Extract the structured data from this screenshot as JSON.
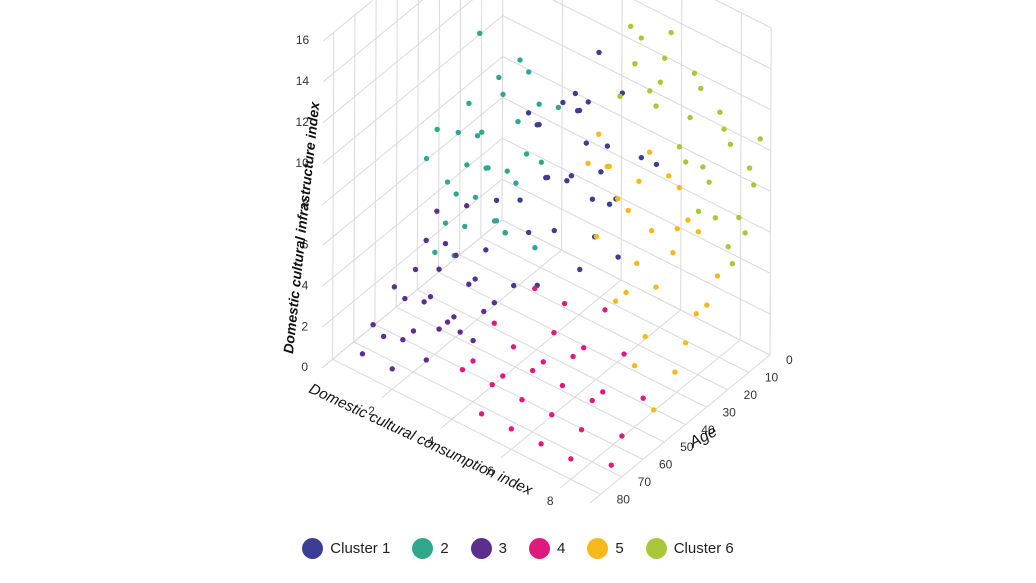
{
  "chart_data": {
    "type": "scatter",
    "dimensions": 3,
    "xlabel": "Domestic cultural consumption index",
    "ylabel": "Age",
    "zlabel": "Domestic cultural infrastructure index",
    "xlim": [
      0,
      9
    ],
    "ylim": [
      0,
      85
    ],
    "zlim": [
      0,
      16
    ],
    "x_ticks": [
      2,
      4,
      6,
      8
    ],
    "y_ticks": [
      0,
      10,
      20,
      30,
      40,
      50,
      60,
      70,
      80
    ],
    "z_ticks": [
      0,
      2,
      4,
      6,
      8,
      10,
      12,
      14,
      16
    ],
    "legend_position": "bottom",
    "grid": true,
    "series": [
      {
        "name": "Cluster 1",
        "legend_label": "Cluster 1",
        "color": "#3c3d94",
        "points": [
          [
            3,
            25,
            9
          ],
          [
            4,
            22,
            11
          ],
          [
            5,
            30,
            12
          ],
          [
            6,
            28,
            13
          ],
          [
            4,
            35,
            8
          ],
          [
            5,
            40,
            9
          ],
          [
            6,
            38,
            10
          ],
          [
            7,
            33,
            11
          ],
          [
            3,
            45,
            7
          ],
          [
            4,
            48,
            8
          ],
          [
            5,
            50,
            10
          ],
          [
            6,
            52,
            11
          ],
          [
            7,
            55,
            9
          ],
          [
            5,
            42,
            13
          ],
          [
            4,
            20,
            10
          ],
          [
            6,
            45,
            12
          ],
          [
            7,
            48,
            10
          ],
          [
            5,
            58,
            8
          ],
          [
            6,
            60,
            9
          ],
          [
            8,
            40,
            12
          ],
          [
            3,
            30,
            10
          ],
          [
            4,
            40,
            11
          ],
          [
            5,
            35,
            12
          ],
          [
            6,
            42,
            9
          ],
          [
            7,
            62,
            8
          ],
          [
            8,
            58,
            9
          ],
          [
            5,
            25,
            14
          ],
          [
            6,
            35,
            11
          ],
          [
            7,
            45,
            10
          ],
          [
            4,
            55,
            7
          ],
          [
            5,
            65,
            6
          ],
          [
            6,
            68,
            7
          ]
        ]
      },
      {
        "name": "2",
        "legend_label": "2",
        "color": "#2fa88e",
        "points": [
          [
            1,
            30,
            9
          ],
          [
            2,
            28,
            10
          ],
          [
            1,
            35,
            8
          ],
          [
            2,
            40,
            9
          ],
          [
            3,
            35,
            10
          ],
          [
            2,
            45,
            8
          ],
          [
            3,
            50,
            9
          ],
          [
            4,
            45,
            10
          ],
          [
            1,
            25,
            12
          ],
          [
            2,
            20,
            11
          ],
          [
            3,
            55,
            8
          ],
          [
            4,
            50,
            9
          ],
          [
            2,
            35,
            7
          ],
          [
            3,
            40,
            8
          ],
          [
            4,
            38,
            9
          ],
          [
            1,
            40,
            6
          ],
          [
            2,
            50,
            7
          ],
          [
            3,
            45,
            6
          ],
          [
            4,
            55,
            7
          ],
          [
            2,
            55,
            6
          ],
          [
            3,
            60,
            7
          ],
          [
            1,
            50,
            8
          ],
          [
            2,
            30,
            11
          ],
          [
            3,
            25,
            10
          ],
          [
            4,
            30,
            11
          ],
          [
            1,
            45,
            9
          ],
          [
            2,
            60,
            5
          ],
          [
            3,
            65,
            6
          ],
          [
            4,
            60,
            8
          ],
          [
            5,
            55,
            7
          ],
          [
            3,
            30,
            12
          ],
          [
            2,
            38,
            9
          ]
        ]
      },
      {
        "name": "3",
        "legend_label": "3",
        "color": "#5c2f8f",
        "points": [
          [
            1,
            55,
            3
          ],
          [
            2,
            50,
            4
          ],
          [
            1,
            60,
            2
          ],
          [
            2,
            62,
            3
          ],
          [
            3,
            58,
            4
          ],
          [
            1,
            65,
            3
          ],
          [
            2,
            70,
            2
          ],
          [
            3,
            68,
            3
          ],
          [
            4,
            65,
            4
          ],
          [
            1,
            70,
            1
          ],
          [
            2,
            75,
            2
          ],
          [
            3,
            72,
            3
          ],
          [
            1,
            50,
            4
          ],
          [
            2,
            55,
            5
          ],
          [
            3,
            50,
            5
          ],
          [
            1,
            45,
            5
          ],
          [
            2,
            45,
            6
          ],
          [
            3,
            62,
            2
          ],
          [
            4,
            70,
            3
          ],
          [
            2,
            80,
            1
          ],
          [
            3,
            78,
            2
          ],
          [
            1,
            75,
            2
          ],
          [
            2,
            65,
            3
          ],
          [
            3,
            55,
            4
          ],
          [
            4,
            60,
            4
          ],
          [
            1,
            80,
            1
          ],
          [
            2,
            58,
            4
          ],
          [
            3,
            65,
            3
          ]
        ]
      },
      {
        "name": "4",
        "legend_label": "4",
        "color": "#e0197f",
        "points": [
          [
            4,
            70,
            2
          ],
          [
            5,
            65,
            3
          ],
          [
            6,
            60,
            4
          ],
          [
            5,
            75,
            2
          ],
          [
            6,
            70,
            3
          ],
          [
            7,
            65,
            4
          ],
          [
            6,
            80,
            1
          ],
          [
            7,
            75,
            2
          ],
          [
            8,
            70,
            3
          ],
          [
            5,
            55,
            5
          ],
          [
            6,
            55,
            5
          ],
          [
            7,
            60,
            4
          ],
          [
            8,
            65,
            3
          ],
          [
            4,
            60,
            3
          ],
          [
            5,
            70,
            2
          ],
          [
            6,
            75,
            2
          ],
          [
            7,
            80,
            1
          ],
          [
            8,
            75,
            2
          ],
          [
            9,
            70,
            2
          ],
          [
            7,
            50,
            5
          ],
          [
            8,
            55,
            4
          ],
          [
            9,
            60,
            3
          ],
          [
            5,
            80,
            1
          ],
          [
            6,
            65,
            3
          ],
          [
            7,
            70,
            3
          ],
          [
            4,
            75,
            2
          ],
          [
            8,
            80,
            1
          ],
          [
            9,
            75,
            1
          ]
        ]
      },
      {
        "name": "5",
        "legend_label": "5",
        "color": "#f7b81c",
        "points": [
          [
            5,
            20,
            8
          ],
          [
            6,
            25,
            7
          ],
          [
            7,
            20,
            9
          ],
          [
            6,
            30,
            8
          ],
          [
            7,
            28,
            7
          ],
          [
            8,
            25,
            8
          ],
          [
            7,
            35,
            6
          ],
          [
            8,
            32,
            7
          ],
          [
            8,
            40,
            6
          ],
          [
            9,
            35,
            5
          ],
          [
            5,
            30,
            9
          ],
          [
            6,
            35,
            10
          ],
          [
            7,
            40,
            5
          ],
          [
            8,
            45,
            4
          ],
          [
            9,
            45,
            3
          ],
          [
            6,
            15,
            9
          ],
          [
            7,
            15,
            8
          ],
          [
            8,
            20,
            7
          ],
          [
            9,
            25,
            6
          ],
          [
            9,
            30,
            5
          ],
          [
            8,
            50,
            3
          ],
          [
            9,
            55,
            2
          ],
          [
            7,
            45,
            5
          ],
          [
            6,
            40,
            7
          ],
          [
            5,
            25,
            10
          ],
          [
            6,
            20,
            8
          ],
          [
            8,
            30,
            8
          ],
          [
            9,
            40,
            4
          ]
        ]
      },
      {
        "name": "Cluster 6",
        "legend_label": "Cluster 6",
        "color": "#a8c83a",
        "points": [
          [
            5,
            5,
            13
          ],
          [
            6,
            5,
            14
          ],
          [
            7,
            8,
            13
          ],
          [
            6,
            10,
            12
          ],
          [
            7,
            10,
            11
          ],
          [
            8,
            10,
            12
          ],
          [
            8,
            5,
            10
          ],
          [
            9,
            8,
            9
          ],
          [
            9,
            5,
            11
          ],
          [
            5,
            10,
            14
          ],
          [
            6,
            15,
            12
          ],
          [
            7,
            15,
            10
          ],
          [
            8,
            15,
            9
          ],
          [
            9,
            15,
            8
          ],
          [
            9,
            12,
            7
          ],
          [
            8,
            20,
            8
          ],
          [
            9,
            20,
            7
          ],
          [
            7,
            5,
            12
          ],
          [
            8,
            8,
            11
          ],
          [
            6,
            8,
            13
          ],
          [
            5,
            15,
            11
          ],
          [
            9,
            10,
            10
          ],
          [
            7,
            12,
            9
          ],
          [
            8,
            12,
            7
          ],
          [
            9,
            18,
            6
          ],
          [
            6,
            12,
            11
          ],
          [
            5,
            8,
            12
          ],
          [
            8,
            18,
            10
          ]
        ]
      }
    ]
  }
}
